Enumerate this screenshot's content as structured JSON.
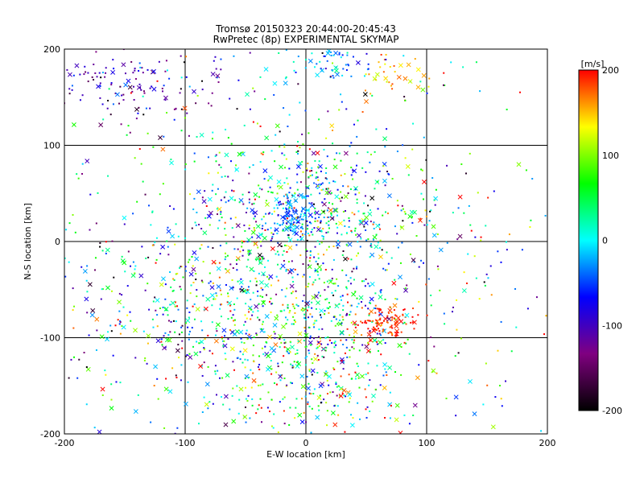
{
  "chart_data": {
    "type": "scatter",
    "title": "Tromsø 20150323 20:44:00-20:45:43",
    "subtitle": "RwPretec (8p) EXPERIMENTAL SKYMAP",
    "xlabel": "E-W location [km]",
    "ylabel": "N-S location [km]",
    "xlim": [
      -200,
      200
    ],
    "ylim": [
      -200,
      200
    ],
    "x_ticks": [
      "-200",
      "-100",
      "0",
      "100",
      "200"
    ],
    "y_ticks": [
      "-200",
      "-100",
      "0",
      "100",
      "200"
    ],
    "grid": true,
    "grid_step": 100,
    "colorbar": {
      "label": "[m/s]",
      "range": [
        -200,
        200
      ],
      "ticks": [
        "200",
        "100",
        "0",
        "-100",
        "-200"
      ],
      "colors": [
        "#000000",
        "#800080",
        "#0000ff",
        "#00ffff",
        "#00ff00",
        "#ffff00",
        "#ff0000"
      ]
    },
    "clusters": [
      {
        "x": -140,
        "y": 165,
        "sx": 45,
        "sy": 25,
        "v": -110,
        "vs": 40,
        "n": 160
      },
      {
        "x": 25,
        "y": 185,
        "sx": 20,
        "sy": 10,
        "v": -30,
        "vs": 30,
        "n": 60
      },
      {
        "x": 70,
        "y": 175,
        "sx": 15,
        "sy": 12,
        "v": 150,
        "vs": 25,
        "n": 35
      },
      {
        "x": 0,
        "y": 25,
        "sx": 45,
        "sy": 40,
        "v": 10,
        "vs": 90,
        "n": 520
      },
      {
        "x": -10,
        "y": 25,
        "sx": 10,
        "sy": 10,
        "v": -40,
        "vs": 20,
        "n": 110
      },
      {
        "x": -20,
        "y": -80,
        "sx": 55,
        "sy": 35,
        "v": 40,
        "vs": 90,
        "n": 420
      },
      {
        "x": 65,
        "y": -85,
        "sx": 12,
        "sy": 10,
        "v": 190,
        "vs": 15,
        "n": 110
      },
      {
        "x": 5,
        "y": -150,
        "sx": 45,
        "sy": 30,
        "v": 50,
        "vs": 100,
        "n": 230
      },
      {
        "x": -120,
        "y": -60,
        "sx": 60,
        "sy": 70,
        "v": 0,
        "vs": 110,
        "n": 260
      },
      {
        "x": 0,
        "y": 0,
        "sx": 140,
        "sy": 130,
        "v": 20,
        "vs": 110,
        "n": 700
      }
    ]
  }
}
